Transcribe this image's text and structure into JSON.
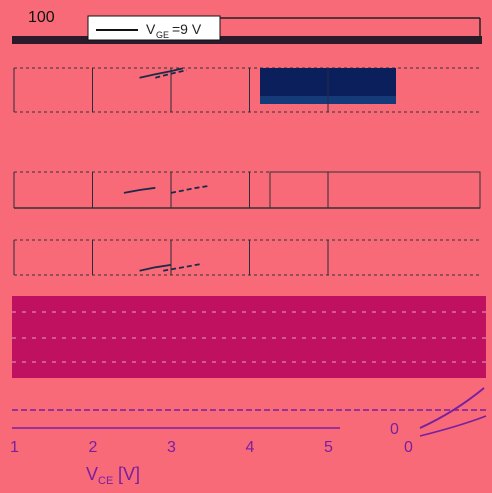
{
  "colors": {
    "background": "#f86a78",
    "navy_panel": "#0a1f5c",
    "magenta_panel": "#c01060",
    "dark_stroke": "#1b2a4a",
    "white": "#ffffff",
    "purple_stroke": "#7a1fa0"
  },
  "chart_data": {
    "type": "line",
    "title": "",
    "legend_label": "V",
    "legend_subscript": "GE",
    "legend_value": "=9 V",
    "annotations": {
      "top_tick": "100",
      "right_axis_zero": "0",
      "right_axis_zero_2": "0"
    },
    "x_axis": {
      "label_main": "V",
      "label_sub": "CE",
      "label_unit": "[V]",
      "ticks": [
        "1",
        "2",
        "3",
        "4",
        "5"
      ],
      "xlim": [
        1,
        5
      ]
    },
    "series": [
      {
        "values_x": [
          2.6,
          2.8,
          3.0,
          3.15
        ],
        "values_y": [
          0.78,
          0.86,
          0.93,
          0.99
        ]
      },
      {
        "values_x": [
          2.8,
          3.0,
          3.2
        ],
        "values_y": [
          0.78,
          0.87,
          0.95
        ]
      },
      {
        "values_x": [
          2.4,
          2.6,
          2.8
        ],
        "values_y": [
          0.42,
          0.5,
          0.56
        ]
      },
      {
        "values_x": [
          3.0,
          3.3,
          3.5
        ],
        "values_y": [
          0.42,
          0.55,
          0.62
        ]
      },
      {
        "values_x": [
          2.6,
          2.8,
          3.0
        ],
        "values_y": [
          0.12,
          0.22,
          0.29
        ]
      },
      {
        "values_x": [
          2.9,
          3.2,
          3.4
        ],
        "values_y": [
          0.12,
          0.24,
          0.32
        ]
      }
    ]
  }
}
